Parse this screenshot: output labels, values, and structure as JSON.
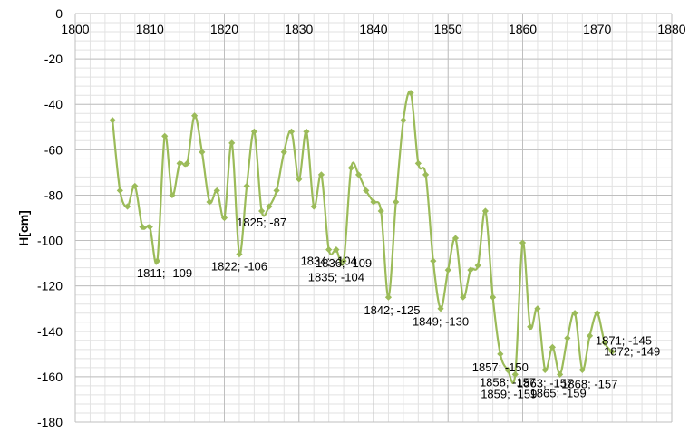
{
  "chart_data": {
    "type": "line",
    "title": "",
    "xlabel": "",
    "ylabel": "H[cm]",
    "xlim": [
      1800,
      1880
    ],
    "ylim": [
      -180,
      0
    ],
    "x_ticks": [
      1800,
      1810,
      1820,
      1830,
      1840,
      1850,
      1860,
      1870,
      1880
    ],
    "y_ticks": [
      0,
      -20,
      -40,
      -60,
      -80,
      -100,
      -120,
      -140,
      -160,
      -180
    ],
    "x_minor_step": 2,
    "y_minor_step": 4,
    "x_axis_position": "top",
    "grid": true,
    "legend": "none",
    "series_color": "#9bbb59",
    "series": [
      {
        "x": [
          1805,
          1806,
          1807,
          1808,
          1809,
          1810,
          1811,
          1812,
          1813,
          1814,
          1815,
          1816,
          1817,
          1818,
          1819,
          1820,
          1821,
          1822,
          1823,
          1824,
          1825,
          1826,
          1827,
          1828,
          1829,
          1830,
          1831,
          1832,
          1833,
          1834,
          1835,
          1836,
          1837,
          1838,
          1839,
          1840,
          1841,
          1842,
          1843,
          1844,
          1845,
          1846,
          1847,
          1848,
          1849,
          1850,
          1851,
          1852,
          1853,
          1854,
          1855,
          1856,
          1857,
          1858,
          1859,
          1860,
          1861,
          1862,
          1863,
          1864,
          1865,
          1866,
          1867,
          1868,
          1869,
          1870,
          1871,
          1872
        ],
        "y": [
          -47,
          -78,
          -85,
          -76,
          -94,
          -94,
          -109,
          -54,
          -80,
          -66,
          -66,
          -45,
          -61,
          -83,
          -78,
          -90,
          -57,
          -106,
          -76,
          -52,
          -87,
          -85,
          -78,
          -61,
          -52,
          -73,
          -52,
          -85,
          -71,
          -104,
          -104,
          -109,
          -68,
          -71,
          -78,
          -83,
          -87,
          -125,
          -83,
          -47,
          -35,
          -66,
          -71,
          -109,
          -130,
          -113,
          -99,
          -125,
          -113,
          -111,
          -87,
          -125,
          -150,
          -157,
          -159,
          -101,
          -138,
          -130,
          -157,
          -147,
          -159,
          -143,
          -132,
          -157,
          -142,
          -132,
          -145,
          -149
        ]
      }
    ],
    "annotations": [
      {
        "x": 1811,
        "y": -109,
        "text": "1811; -109"
      },
      {
        "x": 1822,
        "y": -106,
        "text": "1822; -106"
      },
      {
        "x": 1825,
        "y": -87,
        "text": "1825; -87"
      },
      {
        "x": 1834,
        "y": -104,
        "text": "1834; -104"
      },
      {
        "x": 1835,
        "y": -104,
        "text": "1835; -104"
      },
      {
        "x": 1836,
        "y": -109,
        "text": "1836; -109"
      },
      {
        "x": 1842,
        "y": -125,
        "text": "1842; -125"
      },
      {
        "x": 1849,
        "y": -130,
        "text": "1849; -130"
      },
      {
        "x": 1857,
        "y": -150,
        "text": "1857; -150"
      },
      {
        "x": 1858,
        "y": -157,
        "text": "1858; -157"
      },
      {
        "x": 1859,
        "y": -159,
        "text": "1859; -159"
      },
      {
        "x": 1863,
        "y": -157,
        "text": "1863; -157"
      },
      {
        "x": 1865,
        "y": -159,
        "text": "1865; -159"
      },
      {
        "x": 1868,
        "y": -157,
        "text": "1868; -157"
      },
      {
        "x": 1871,
        "y": -145,
        "text": "1871; -145"
      },
      {
        "x": 1872,
        "y": -149,
        "text": "1872; -149"
      }
    ]
  }
}
